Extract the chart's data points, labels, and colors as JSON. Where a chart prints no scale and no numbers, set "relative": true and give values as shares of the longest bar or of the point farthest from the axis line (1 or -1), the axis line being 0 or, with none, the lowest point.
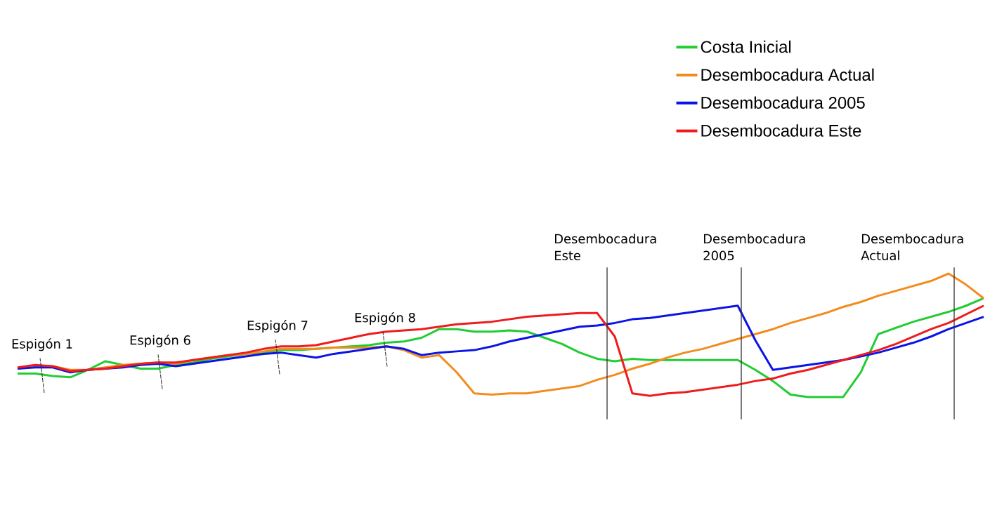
{
  "chart_data": {
    "type": "line",
    "relative": true,
    "legend": "top right",
    "categories": [
      null,
      null,
      null,
      null,
      null,
      null,
      null,
      null,
      null,
      null,
      null,
      null,
      null,
      null,
      null,
      null,
      null,
      null,
      null,
      null,
      null,
      null,
      null,
      null,
      null,
      null,
      null,
      null,
      null,
      null,
      null,
      null,
      null,
      null,
      null,
      null,
      null,
      null,
      null,
      null,
      null,
      null,
      null,
      null,
      null,
      null,
      null,
      null,
      null,
      null,
      null,
      null,
      null,
      null,
      null,
      null
    ],
    "series": [
      {
        "name": "Costa Inicial",
        "color": "#22cc33",
        "values": [
          0.19,
          0.19,
          0.17,
          0.16,
          0.22,
          0.29,
          0.26,
          0.23,
          0.23,
          0.26,
          0.28,
          0.31,
          0.33,
          0.35,
          0.36,
          0.38,
          0.38,
          0.39,
          0.4,
          0.41,
          0.42,
          0.44,
          0.45,
          0.48,
          0.55,
          0.55,
          0.53,
          0.53,
          0.54,
          0.53,
          0.48,
          0.43,
          0.36,
          0.31,
          0.29,
          0.31,
          0.3,
          0.3,
          0.3,
          0.3,
          0.3,
          0.3,
          0.22,
          0.13,
          0.02,
          0,
          0,
          0,
          0.2,
          0.51,
          0.56,
          0.61,
          0.65,
          0.69,
          0.74,
          0.8
        ]
      },
      {
        "name": "Desembocadura Actual",
        "color": "#f28c1e",
        "values": [
          0.23,
          0.25,
          0.25,
          0.22,
          0.22,
          0.24,
          0.26,
          0.27,
          0.28,
          0.27,
          0.3,
          0.32,
          0.34,
          0.35,
          0.37,
          0.39,
          0.39,
          0.39,
          0.4,
          0.4,
          0.4,
          0.41,
          0.38,
          0.32,
          0.34,
          0.2,
          0.03,
          0.02,
          0.03,
          0.03,
          0.05,
          0.07,
          0.09,
          0.14,
          0.18,
          0.23,
          0.27,
          0.32,
          0.36,
          0.39,
          0.43,
          0.47,
          0.51,
          0.55,
          0.6,
          0.64,
          0.68,
          0.73,
          0.77,
          0.82,
          0.86,
          0.9,
          0.94,
          1.0,
          0.91,
          0.8
        ]
      },
      {
        "name": "Desembocadura 2005",
        "color": "#0a14e6",
        "values": [
          0.23,
          0.24,
          0.24,
          0.2,
          0.22,
          0.23,
          0.24,
          0.26,
          0.27,
          0.25,
          0.27,
          0.29,
          0.31,
          0.33,
          0.35,
          0.36,
          0.34,
          0.32,
          0.35,
          0.37,
          0.39,
          0.41,
          0.39,
          0.34,
          0.36,
          0.37,
          0.38,
          0.41,
          0.45,
          0.48,
          0.51,
          0.54,
          0.57,
          0.58,
          0.6,
          0.63,
          0.64,
          0.66,
          0.68,
          0.7,
          0.72,
          0.74,
          0.46,
          0.22,
          0.24,
          0.26,
          0.28,
          0.3,
          0.33,
          0.36,
          0.4,
          0.44,
          0.49,
          0.55,
          0.6,
          0.65
        ]
      },
      {
        "name": "Desembocadura Este",
        "color": "#ee1c1c",
        "values": [
          0.24,
          0.26,
          0.25,
          0.21,
          0.22,
          0.23,
          0.25,
          0.27,
          0.28,
          0.28,
          0.3,
          0.32,
          0.34,
          0.36,
          0.39,
          0.41,
          0.41,
          0.42,
          0.45,
          0.48,
          0.51,
          0.53,
          0.54,
          0.55,
          0.57,
          0.59,
          0.6,
          0.61,
          0.63,
          0.65,
          0.66,
          0.67,
          0.68,
          0.68,
          0.49,
          0.03,
          0.01,
          0.03,
          0.04,
          0.06,
          0.08,
          0.1,
          0.13,
          0.15,
          0.19,
          0.22,
          0.26,
          0.3,
          0.34,
          0.38,
          0.43,
          0.49,
          0.55,
          0.6,
          0.67,
          0.74
        ]
      }
    ],
    "annotations": [
      "Espigón 1",
      "Espigón 6",
      "Espigón 7",
      "Espigón 8",
      "Desembocadura Este",
      "Desembocadura 2005",
      "Desembocadura Actual"
    ]
  }
}
